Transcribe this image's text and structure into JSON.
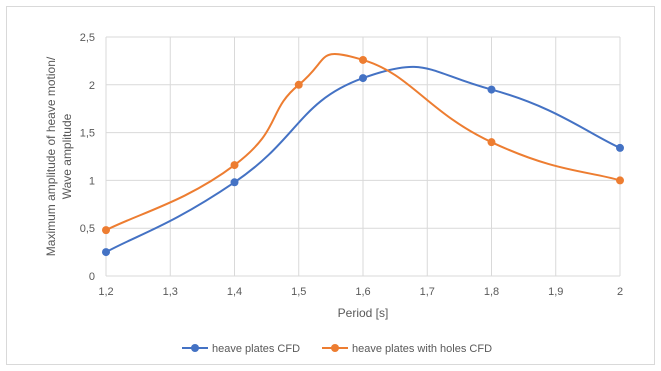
{
  "chart_data": {
    "type": "line",
    "title": "",
    "xlabel": "Period [s]",
    "ylabel_lines": [
      "Maximum amplitude of heave motion/",
      "Wave amplitude"
    ],
    "xlim": [
      1.2,
      2.0
    ],
    "ylim": [
      0,
      2.5
    ],
    "x_ticks": [
      "1,2",
      "1,3",
      "1,4",
      "1,5",
      "1,6",
      "1,7",
      "1,8",
      "1,9",
      "2"
    ],
    "y_ticks": [
      "0",
      "0,5",
      "1",
      "1,5",
      "2",
      "2,5"
    ],
    "grid": true,
    "legend_position": "bottom",
    "series": [
      {
        "name": "heave plates CFD",
        "color": "#4472c4",
        "x": [
          1.2,
          1.4,
          1.6,
          1.8,
          2.0
        ],
        "values": [
          0.25,
          0.98,
          2.07,
          1.95,
          1.34
        ]
      },
      {
        "name": "heave plates with holes CFD",
        "color": "#ed7d31",
        "x": [
          1.2,
          1.4,
          1.5,
          1.6,
          1.8,
          2.0
        ],
        "values": [
          0.48,
          1.16,
          2.0,
          2.26,
          1.4,
          1.0
        ]
      }
    ]
  }
}
